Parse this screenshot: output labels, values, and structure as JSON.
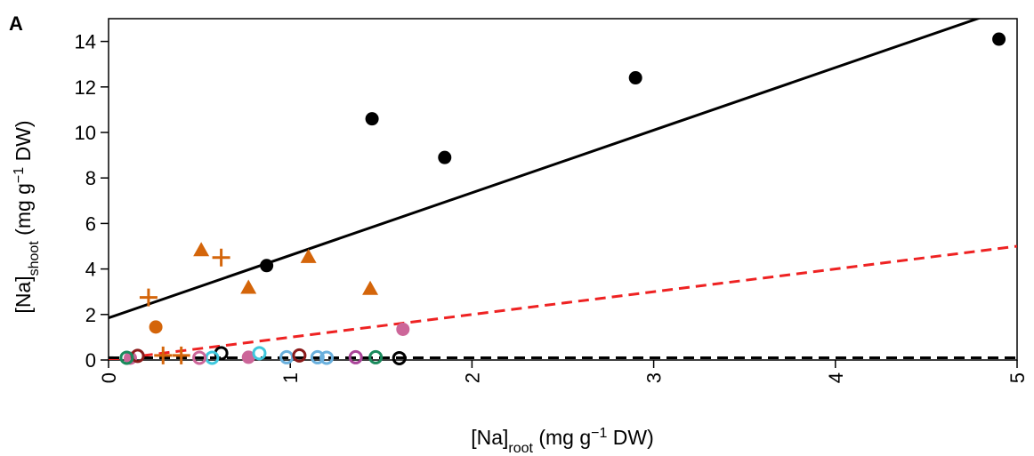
{
  "panel_label": "A",
  "chart_data": {
    "type": "scatter",
    "xlabel": {
      "main": "[Na]",
      "sub": "root",
      "unit_pre": " (mg g",
      "sup": "−1",
      "unit_post": " DW)"
    },
    "ylabel": {
      "main": "[Na]",
      "sub": "shoot",
      "unit_pre": " (mg g",
      "sup": "−1",
      "unit_post": " DW)"
    },
    "xlim": [
      0,
      5
    ],
    "ylim": [
      0,
      15
    ],
    "x_ticks": [
      0,
      1,
      2,
      3,
      4,
      5
    ],
    "x_tick_labels": [
      "0",
      "1",
      "2",
      "3",
      "4",
      "5"
    ],
    "y_ticks": [
      0,
      2,
      4,
      6,
      8,
      10,
      12,
      14
    ],
    "y_tick_labels": [
      "0",
      "2",
      "4",
      "6",
      "8",
      "10",
      "12",
      "14"
    ],
    "grid": false,
    "colors": {
      "black": "#000000",
      "orange": "#d4650a",
      "red": "#ee2222",
      "pink": "#cc6699",
      "green": "#1a8a5c",
      "cyan": "#3ec8dd",
      "skyblue": "#6ab0dd",
      "darkred": "#8b1a1a",
      "purple": "#aa4499"
    },
    "series": [
      {
        "marker": "filled-circle",
        "color": "#000000",
        "points": [
          [
            0.87,
            4.15
          ],
          [
            1.45,
            10.6
          ],
          [
            1.85,
            8.9
          ],
          [
            2.9,
            12.4
          ],
          [
            4.9,
            14.1
          ]
        ]
      },
      {
        "marker": "filled-triangle",
        "color": "#d4650a",
        "points": [
          [
            0.51,
            4.8
          ],
          [
            0.77,
            3.15
          ],
          [
            1.1,
            4.5
          ],
          [
            1.44,
            3.1
          ]
        ]
      },
      {
        "marker": "plus",
        "color": "#d4650a",
        "points": [
          [
            0.22,
            2.75
          ],
          [
            0.62,
            4.5
          ],
          [
            0.3,
            0.2
          ],
          [
            0.4,
            0.2
          ]
        ]
      },
      {
        "marker": "filled-circle",
        "color": "#d4650a",
        "points": [
          [
            0.26,
            1.45
          ]
        ]
      },
      {
        "marker": "filled-circle",
        "color": "#cc6699",
        "points": [
          [
            1.62,
            1.35
          ],
          [
            0.77,
            0.12
          ],
          [
            0.12,
            0.08
          ]
        ]
      },
      {
        "marker": "open-circle",
        "color": "#000000",
        "points": [
          [
            0.62,
            0.3
          ],
          [
            1.6,
            0.08
          ]
        ]
      },
      {
        "marker": "open-circle",
        "color": "#3ec8dd",
        "points": [
          [
            0.83,
            0.3
          ],
          [
            0.57,
            0.1
          ]
        ]
      },
      {
        "marker": "open-circle",
        "color": "#6ab0dd",
        "points": [
          [
            0.98,
            0.12
          ],
          [
            1.15,
            0.12
          ],
          [
            1.2,
            0.1
          ]
        ]
      },
      {
        "marker": "open-circle",
        "color": "#8b1a1a",
        "points": [
          [
            1.05,
            0.2
          ],
          [
            0.16,
            0.18
          ]
        ]
      },
      {
        "marker": "open-circle",
        "color": "#1a8a5c",
        "points": [
          [
            1.47,
            0.12
          ],
          [
            0.1,
            0.1
          ]
        ]
      },
      {
        "marker": "open-circle",
        "color": "#aa4499",
        "points": [
          [
            1.36,
            0.12
          ]
        ]
      },
      {
        "marker": "open-circle",
        "color": "#cc6699",
        "points": [
          [
            0.5,
            0.1
          ]
        ]
      }
    ],
    "lines": [
      {
        "style": "solid",
        "color": "#000000",
        "intercept": 1.85,
        "slope": 2.75
      },
      {
        "style": "dashed",
        "color": "#ee2222",
        "intercept": 0.0,
        "slope": 1.0
      },
      {
        "style": "dashed",
        "color": "#000000",
        "intercept": 0.1,
        "slope": 0.0
      }
    ]
  }
}
